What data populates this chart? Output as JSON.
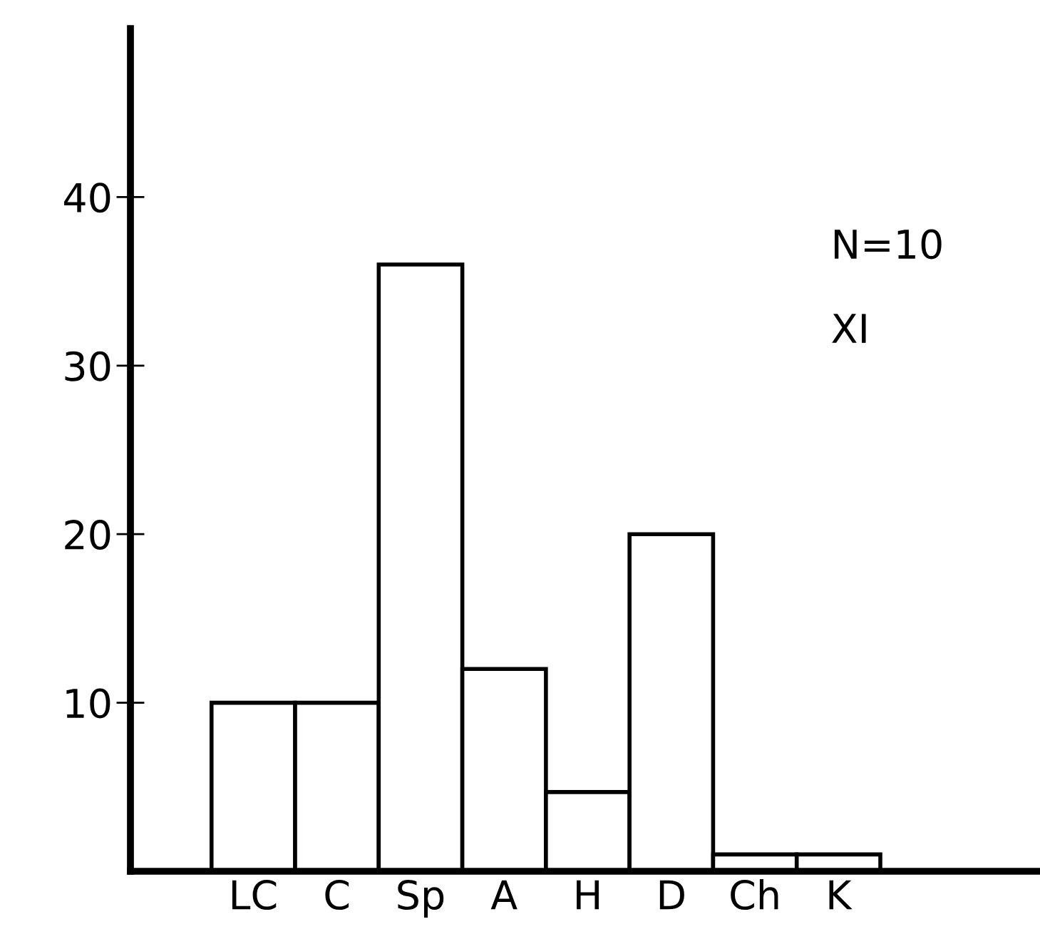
{
  "chart_data": {
    "type": "bar",
    "categories": [
      "LC",
      "C",
      "Sp",
      "A",
      "H",
      "D",
      "Ch",
      "K"
    ],
    "values": [
      10,
      10,
      36,
      12,
      4.7,
      20,
      1,
      1
    ],
    "color": "#ffffff",
    "ylim": [
      0,
      50
    ],
    "yticks": [
      10,
      20,
      30,
      40
    ],
    "grid": false,
    "legend": false,
    "annotations": [
      "N=10",
      "XI"
    ]
  }
}
